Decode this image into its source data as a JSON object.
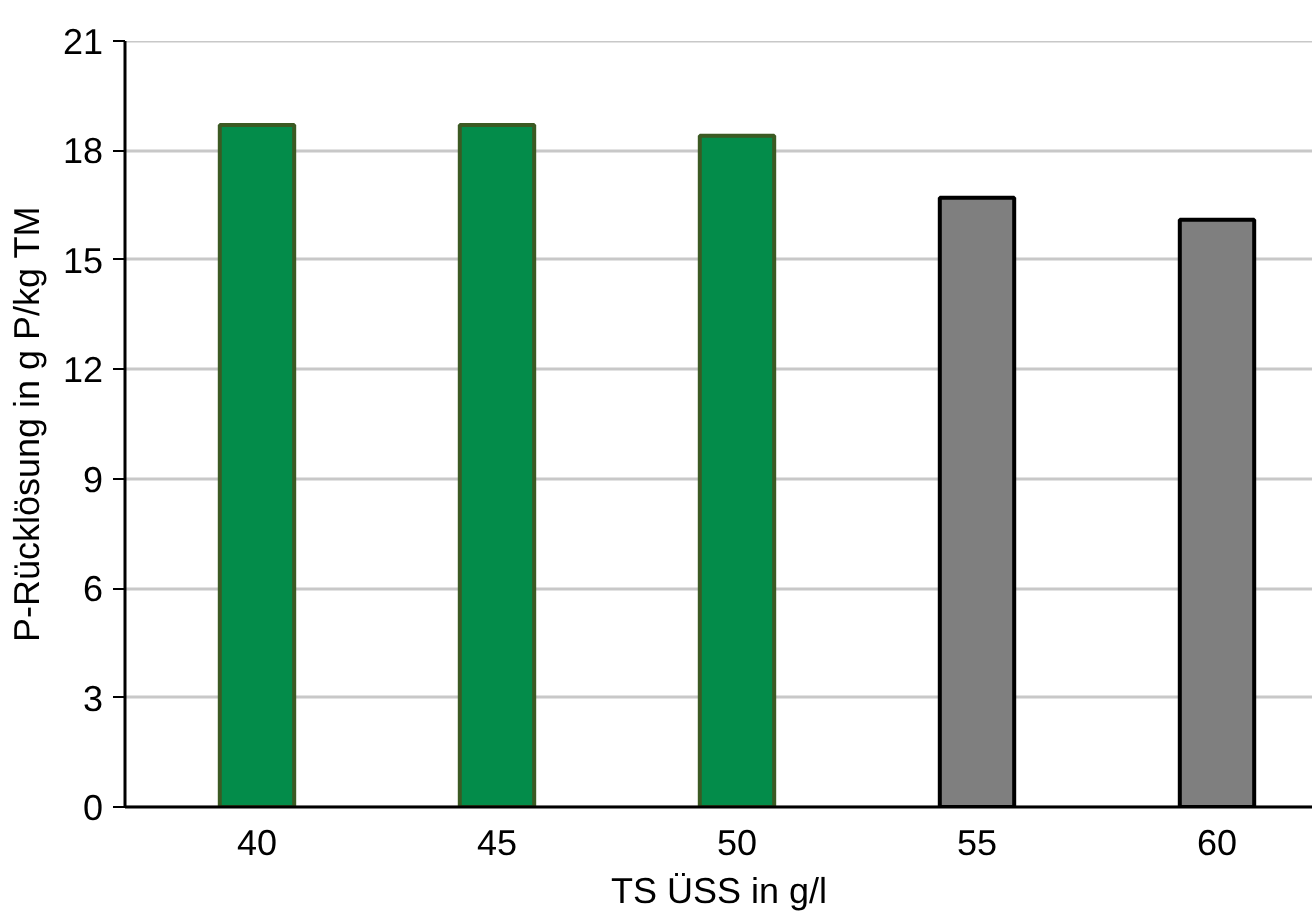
{
  "chart_data": {
    "type": "bar",
    "xlabel": "TS ÜSS in g/l",
    "ylabel": "P-Rücklösung in g P/kg TM",
    "categories": [
      "40",
      "45",
      "50",
      "55",
      "60"
    ],
    "values": [
      18.7,
      18.7,
      18.4,
      16.7,
      16.1
    ],
    "colors": [
      "#038c4a",
      "#038c4a",
      "#038c4a",
      "#7f7f7f",
      "#7f7f7f"
    ],
    "ylim": [
      0,
      21
    ],
    "yticks": [
      0,
      3,
      6,
      9,
      12,
      15,
      18,
      21
    ],
    "grid": "y"
  }
}
